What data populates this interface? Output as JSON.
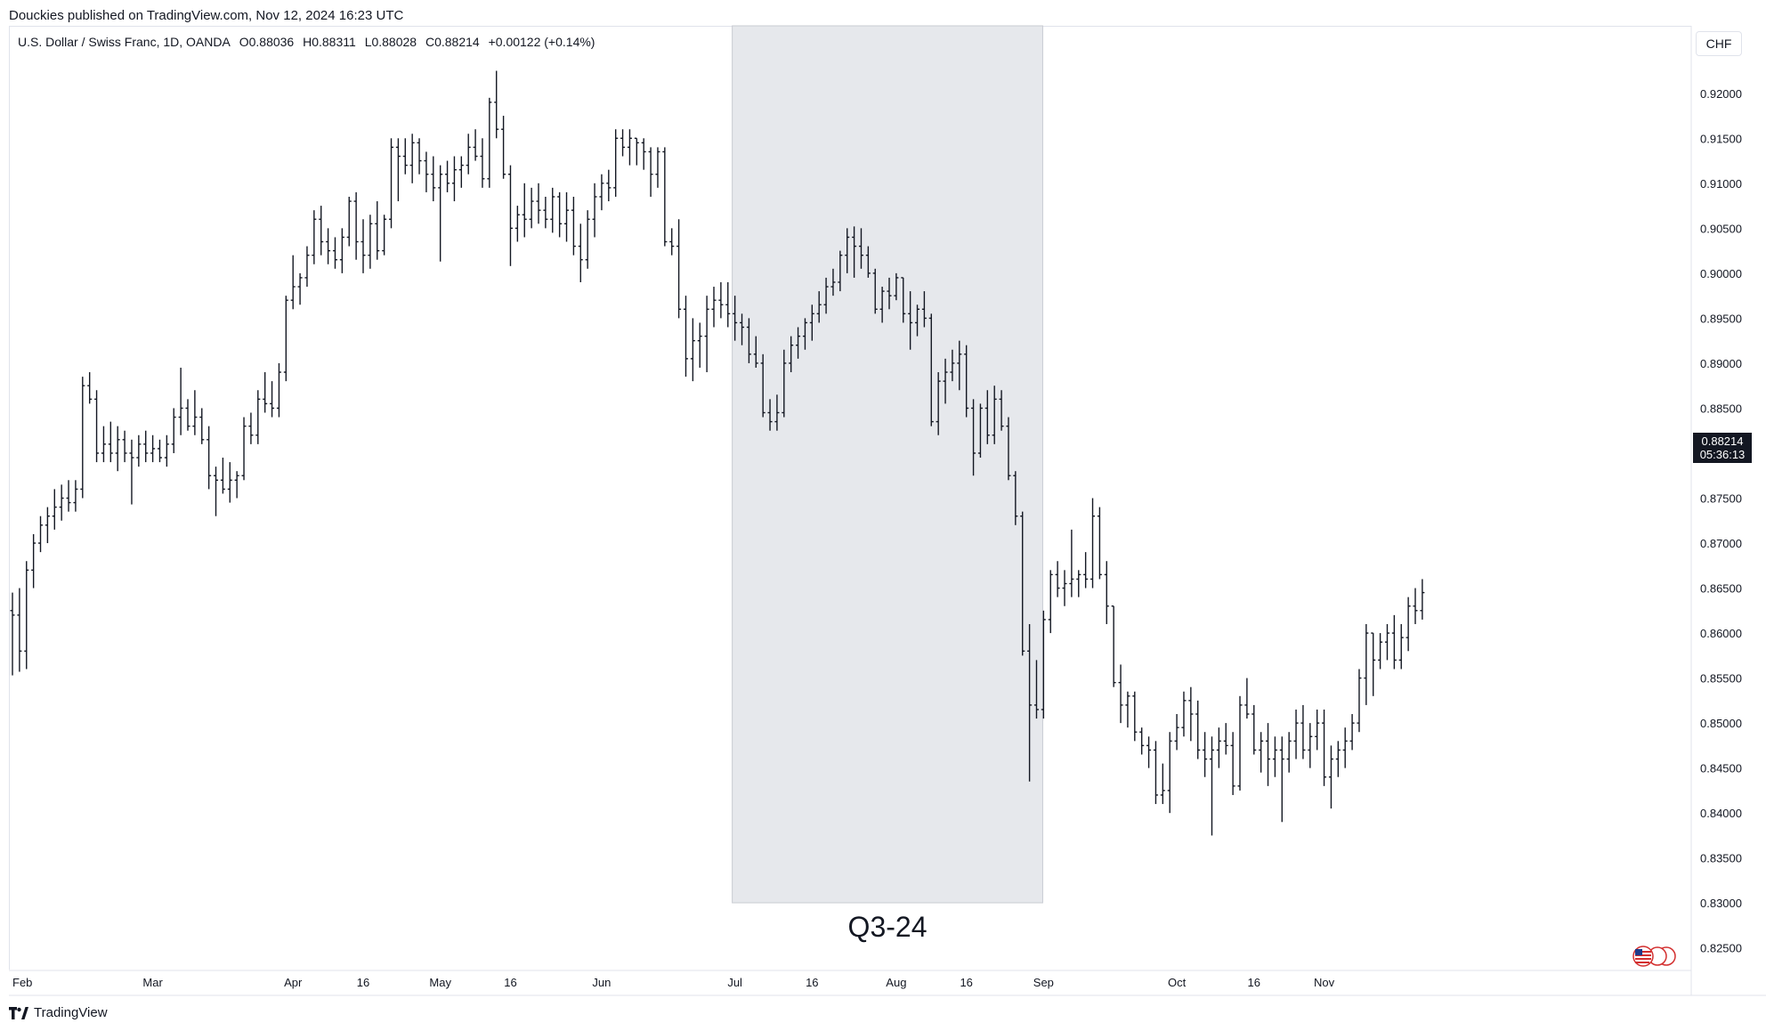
{
  "header": {
    "credit": "Douckies published on TradingView.com, Nov 12, 2024 16:23 UTC"
  },
  "legend": {
    "symbol": "U.S. Dollar / Swiss Franc, 1D, OANDA",
    "open": "O0.88036",
    "high": "H0.88311",
    "low": "L0.88028",
    "close": "C0.88214",
    "change": "+0.00122 (+0.14%)"
  },
  "price_axis": {
    "currency": "CHF",
    "last_price": "0.88214",
    "countdown": "05:36:13"
  },
  "footer": {
    "brand": "TradingView"
  },
  "colors": {
    "bars": "#131722",
    "highlight": "#e6e8ec",
    "highlight_border": "#c8cbd2"
  },
  "chart_data": {
    "type": "ohlc-bar",
    "symbol": "USDCHF",
    "ylim": [
      0.8225,
      0.9275
    ],
    "y_ticks": [
      "0.92000",
      "0.91500",
      "0.91000",
      "0.90500",
      "0.90000",
      "0.89500",
      "0.89000",
      "0.88500",
      "0.88000",
      "0.87500",
      "0.87000",
      "0.86500",
      "0.86000",
      "0.85500",
      "0.85000",
      "0.84500",
      "0.84000",
      "0.83500",
      "0.83000",
      "0.82500"
    ],
    "x_ticks": [
      {
        "label": "Feb",
        "bar": 0
      },
      {
        "label": "Mar",
        "bar": 20
      },
      {
        "label": "Apr",
        "bar": 40
      },
      {
        "label": "16",
        "bar": 50
      },
      {
        "label": "May",
        "bar": 61
      },
      {
        "label": "16",
        "bar": 71
      },
      {
        "label": "Jun",
        "bar": 84
      },
      {
        "label": "Jul",
        "bar": 103
      },
      {
        "label": "16",
        "bar": 114
      },
      {
        "label": "Aug",
        "bar": 126
      },
      {
        "label": "16",
        "bar": 136
      },
      {
        "label": "Sep",
        "bar": 147
      },
      {
        "label": "Oct",
        "bar": 166
      },
      {
        "label": "16",
        "bar": 177
      },
      {
        "label": "Nov",
        "bar": 187
      }
    ],
    "highlight": {
      "label": "Q3-24",
      "start_bar": 103,
      "end_bar": 146.5
    },
    "bars": [
      [
        0.8625,
        0.8645,
        0.8553,
        0.862
      ],
      [
        0.862,
        0.865,
        0.8557,
        0.858
      ],
      [
        0.858,
        0.868,
        0.856,
        0.867
      ],
      [
        0.867,
        0.871,
        0.865,
        0.87
      ],
      [
        0.87,
        0.873,
        0.869,
        0.872
      ],
      [
        0.872,
        0.874,
        0.87,
        0.873
      ],
      [
        0.873,
        0.876,
        0.8715,
        0.874
      ],
      [
        0.874,
        0.8765,
        0.8725,
        0.875
      ],
      [
        0.875,
        0.877,
        0.8735,
        0.8745
      ],
      [
        0.8745,
        0.877,
        0.8735,
        0.876
      ],
      [
        0.876,
        0.8885,
        0.875,
        0.8875
      ],
      [
        0.8875,
        0.889,
        0.8855,
        0.886
      ],
      [
        0.886,
        0.887,
        0.879,
        0.88
      ],
      [
        0.88,
        0.883,
        0.879,
        0.881
      ],
      [
        0.881,
        0.8835,
        0.879,
        0.88
      ],
      [
        0.88,
        0.883,
        0.878,
        0.8815
      ],
      [
        0.8815,
        0.8825,
        0.879,
        0.88
      ],
      [
        0.88,
        0.8815,
        0.8743,
        0.8795
      ],
      [
        0.8795,
        0.882,
        0.8785,
        0.881
      ],
      [
        0.881,
        0.8825,
        0.879,
        0.88
      ],
      [
        0.88,
        0.882,
        0.879,
        0.8805
      ],
      [
        0.8805,
        0.8815,
        0.879,
        0.8795
      ],
      [
        0.8795,
        0.882,
        0.8785,
        0.881
      ],
      [
        0.881,
        0.885,
        0.88,
        0.884
      ],
      [
        0.884,
        0.8895,
        0.882,
        0.885
      ],
      [
        0.885,
        0.886,
        0.8825,
        0.883
      ],
      [
        0.883,
        0.887,
        0.882,
        0.884
      ],
      [
        0.884,
        0.885,
        0.881,
        0.8815
      ],
      [
        0.8815,
        0.883,
        0.876,
        0.8775
      ],
      [
        0.8775,
        0.8785,
        0.873,
        0.877
      ],
      [
        0.877,
        0.8795,
        0.8755,
        0.876
      ],
      [
        0.876,
        0.879,
        0.8745,
        0.877
      ],
      [
        0.877,
        0.878,
        0.875,
        0.8775
      ],
      [
        0.8775,
        0.884,
        0.877,
        0.883
      ],
      [
        0.883,
        0.8845,
        0.881,
        0.882
      ],
      [
        0.882,
        0.887,
        0.881,
        0.886
      ],
      [
        0.886,
        0.889,
        0.8845,
        0.8855
      ],
      [
        0.8855,
        0.888,
        0.884,
        0.885
      ],
      [
        0.885,
        0.89,
        0.884,
        0.889
      ],
      [
        0.889,
        0.8975,
        0.888,
        0.897
      ],
      [
        0.897,
        0.902,
        0.896,
        0.8985
      ],
      [
        0.8985,
        0.9,
        0.8965,
        0.8995
      ],
      [
        0.8995,
        0.903,
        0.8985,
        0.902
      ],
      [
        0.902,
        0.907,
        0.901,
        0.906
      ],
      [
        0.906,
        0.9075,
        0.902,
        0.9035
      ],
      [
        0.9035,
        0.905,
        0.901,
        0.9025
      ],
      [
        0.9025,
        0.904,
        0.9005,
        0.9015
      ],
      [
        0.9015,
        0.905,
        0.9,
        0.904
      ],
      [
        0.904,
        0.9085,
        0.903,
        0.908
      ],
      [
        0.908,
        0.909,
        0.9015,
        0.9035
      ],
      [
        0.9035,
        0.906,
        0.9,
        0.902
      ],
      [
        0.902,
        0.9065,
        0.9005,
        0.9055
      ],
      [
        0.9055,
        0.908,
        0.9015,
        0.9025
      ],
      [
        0.9025,
        0.9065,
        0.902,
        0.906
      ],
      [
        0.906,
        0.915,
        0.905,
        0.914
      ],
      [
        0.914,
        0.915,
        0.908,
        0.913
      ],
      [
        0.913,
        0.915,
        0.911,
        0.912
      ],
      [
        0.912,
        0.9155,
        0.91,
        0.9145
      ],
      [
        0.9145,
        0.915,
        0.911,
        0.9125
      ],
      [
        0.9125,
        0.9135,
        0.909,
        0.911
      ],
      [
        0.911,
        0.913,
        0.908,
        0.9095
      ],
      [
        0.9095,
        0.912,
        0.9013,
        0.911
      ],
      [
        0.911,
        0.9125,
        0.909,
        0.91
      ],
      [
        0.91,
        0.913,
        0.908,
        0.9115
      ],
      [
        0.9115,
        0.913,
        0.9095,
        0.912
      ],
      [
        0.912,
        0.9155,
        0.911,
        0.914
      ],
      [
        0.914,
        0.916,
        0.9125,
        0.913
      ],
      [
        0.913,
        0.915,
        0.9095,
        0.9105
      ],
      [
        0.9105,
        0.9195,
        0.9095,
        0.919
      ],
      [
        0.919,
        0.9225,
        0.915,
        0.916
      ],
      [
        0.916,
        0.9175,
        0.9105,
        0.911
      ],
      [
        0.911,
        0.912,
        0.9008,
        0.905
      ],
      [
        0.905,
        0.9075,
        0.9035,
        0.9065
      ],
      [
        0.9065,
        0.91,
        0.904,
        0.906
      ],
      [
        0.906,
        0.9095,
        0.905,
        0.908
      ],
      [
        0.908,
        0.91,
        0.9055,
        0.907
      ],
      [
        0.907,
        0.9085,
        0.905,
        0.906
      ],
      [
        0.906,
        0.9095,
        0.9045,
        0.9085
      ],
      [
        0.9085,
        0.909,
        0.904,
        0.9055
      ],
      [
        0.9055,
        0.909,
        0.9035,
        0.907
      ],
      [
        0.907,
        0.9085,
        0.902,
        0.903
      ],
      [
        0.903,
        0.9055,
        0.899,
        0.9015
      ],
      [
        0.9015,
        0.907,
        0.9005,
        0.906
      ],
      [
        0.906,
        0.91,
        0.904,
        0.9085
      ],
      [
        0.9085,
        0.911,
        0.907,
        0.91
      ],
      [
        0.91,
        0.9115,
        0.908,
        0.9095
      ],
      [
        0.9095,
        0.916,
        0.9085,
        0.915
      ],
      [
        0.915,
        0.916,
        0.913,
        0.914
      ],
      [
        0.914,
        0.916,
        0.912,
        0.915
      ],
      [
        0.915,
        0.915,
        0.912,
        0.9145
      ],
      [
        0.9145,
        0.915,
        0.9115,
        0.9135
      ],
      [
        0.9135,
        0.914,
        0.9085,
        0.911
      ],
      [
        0.911,
        0.914,
        0.9095,
        0.9135
      ],
      [
        0.9135,
        0.914,
        0.903,
        0.9035
      ],
      [
        0.9035,
        0.905,
        0.902,
        0.903
      ],
      [
        0.903,
        0.906,
        0.895,
        0.896
      ],
      [
        0.896,
        0.8975,
        0.8885,
        0.8905
      ],
      [
        0.8905,
        0.895,
        0.888,
        0.8925
      ],
      [
        0.8925,
        0.8945,
        0.8895,
        0.893
      ],
      [
        0.893,
        0.8975,
        0.889,
        0.896
      ],
      [
        0.896,
        0.8985,
        0.894,
        0.897
      ],
      [
        0.897,
        0.899,
        0.895,
        0.8965
      ],
      [
        0.8965,
        0.899,
        0.894,
        0.8955
      ],
      [
        0.8955,
        0.8975,
        0.8925,
        0.8945
      ],
      [
        0.8945,
        0.8955,
        0.892,
        0.894
      ],
      [
        0.894,
        0.895,
        0.89,
        0.891
      ],
      [
        0.891,
        0.893,
        0.8895,
        0.89
      ],
      [
        0.89,
        0.891,
        0.884,
        0.8845
      ],
      [
        0.8845,
        0.886,
        0.8825,
        0.8835
      ],
      [
        0.8835,
        0.8865,
        0.8825,
        0.8845
      ],
      [
        0.8845,
        0.8915,
        0.884,
        0.89
      ],
      [
        0.89,
        0.893,
        0.889,
        0.892
      ],
      [
        0.892,
        0.894,
        0.8905,
        0.893
      ],
      [
        0.893,
        0.895,
        0.8915,
        0.8945
      ],
      [
        0.8945,
        0.8965,
        0.8925,
        0.8955
      ],
      [
        0.8955,
        0.898,
        0.8945,
        0.8965
      ],
      [
        0.8965,
        0.8995,
        0.8955,
        0.8985
      ],
      [
        0.8985,
        0.9005,
        0.8975,
        0.899
      ],
      [
        0.899,
        0.9025,
        0.898,
        0.902
      ],
      [
        0.902,
        0.905,
        0.9,
        0.904
      ],
      [
        0.904,
        0.9052,
        0.8995,
        0.903
      ],
      [
        0.903,
        0.905,
        0.9005,
        0.902
      ],
      [
        0.902,
        0.903,
        0.8995,
        0.9
      ],
      [
        0.9,
        0.9005,
        0.8955,
        0.896
      ],
      [
        0.896,
        0.8985,
        0.8945,
        0.898
      ],
      [
        0.898,
        0.8995,
        0.896,
        0.8975
      ],
      [
        0.8975,
        0.9,
        0.897,
        0.8995
      ],
      [
        0.8995,
        0.8995,
        0.8945,
        0.8955
      ],
      [
        0.8955,
        0.898,
        0.8915,
        0.8945
      ],
      [
        0.8945,
        0.8965,
        0.893,
        0.896
      ],
      [
        0.896,
        0.898,
        0.894,
        0.895
      ],
      [
        0.895,
        0.8955,
        0.883,
        0.8835
      ],
      [
        0.8835,
        0.889,
        0.882,
        0.888
      ],
      [
        0.888,
        0.8905,
        0.8855,
        0.889
      ],
      [
        0.889,
        0.8915,
        0.888,
        0.89
      ],
      [
        0.89,
        0.8925,
        0.887,
        0.891
      ],
      [
        0.891,
        0.892,
        0.884,
        0.885
      ],
      [
        0.885,
        0.886,
        0.8775,
        0.88
      ],
      [
        0.88,
        0.8855,
        0.8795,
        0.885
      ],
      [
        0.885,
        0.887,
        0.881,
        0.882
      ],
      [
        0.882,
        0.8875,
        0.881,
        0.886
      ],
      [
        0.886,
        0.887,
        0.8825,
        0.883
      ],
      [
        0.883,
        0.884,
        0.877,
        0.8775
      ],
      [
        0.8775,
        0.878,
        0.872,
        0.873
      ],
      [
        0.873,
        0.8735,
        0.8575,
        0.858
      ],
      [
        0.858,
        0.861,
        0.8435,
        0.852
      ],
      [
        0.852,
        0.857,
        0.8505,
        0.8515
      ],
      [
        0.8515,
        0.8625,
        0.8505,
        0.8615
      ],
      [
        0.8615,
        0.867,
        0.86,
        0.8665
      ],
      [
        0.8665,
        0.868,
        0.864,
        0.865
      ],
      [
        0.865,
        0.867,
        0.863,
        0.8655
      ],
      [
        0.8655,
        0.8715,
        0.864,
        0.866
      ],
      [
        0.866,
        0.867,
        0.864,
        0.8665
      ],
      [
        0.8665,
        0.869,
        0.865,
        0.866
      ],
      [
        0.866,
        0.875,
        0.865,
        0.873
      ],
      [
        0.873,
        0.874,
        0.866,
        0.8665
      ],
      [
        0.8665,
        0.868,
        0.861,
        0.863
      ],
      [
        0.863,
        0.863,
        0.854,
        0.8545
      ],
      [
        0.8545,
        0.8565,
        0.85,
        0.852
      ],
      [
        0.852,
        0.8535,
        0.8495,
        0.853
      ],
      [
        0.853,
        0.8535,
        0.848,
        0.849
      ],
      [
        0.849,
        0.8495,
        0.8465,
        0.8475
      ],
      [
        0.8475,
        0.8485,
        0.845,
        0.847
      ],
      [
        0.847,
        0.848,
        0.841,
        0.842
      ],
      [
        0.842,
        0.8455,
        0.841,
        0.8425
      ],
      [
        0.8425,
        0.849,
        0.84,
        0.848
      ],
      [
        0.848,
        0.851,
        0.847,
        0.8495
      ],
      [
        0.8495,
        0.8535,
        0.8485,
        0.8525
      ],
      [
        0.8525,
        0.854,
        0.848,
        0.851
      ],
      [
        0.851,
        0.8525,
        0.846,
        0.847
      ],
      [
        0.847,
        0.849,
        0.844,
        0.846
      ],
      [
        0.846,
        0.8485,
        0.8375,
        0.847
      ],
      [
        0.847,
        0.8495,
        0.845,
        0.848
      ],
      [
        0.848,
        0.85,
        0.8465,
        0.8475
      ],
      [
        0.8475,
        0.849,
        0.842,
        0.843
      ],
      [
        0.843,
        0.853,
        0.8425,
        0.852
      ],
      [
        0.852,
        0.855,
        0.8505,
        0.851
      ],
      [
        0.851,
        0.852,
        0.8465,
        0.847
      ],
      [
        0.847,
        0.849,
        0.8445,
        0.848
      ],
      [
        0.848,
        0.85,
        0.843,
        0.846
      ],
      [
        0.846,
        0.8485,
        0.844,
        0.847
      ],
      [
        0.847,
        0.8485,
        0.839,
        0.846
      ],
      [
        0.846,
        0.849,
        0.8445,
        0.848
      ],
      [
        0.848,
        0.8515,
        0.846,
        0.85
      ],
      [
        0.85,
        0.852,
        0.846,
        0.847
      ],
      [
        0.847,
        0.85,
        0.845,
        0.8485
      ],
      [
        0.8485,
        0.8515,
        0.847,
        0.85
      ],
      [
        0.85,
        0.8515,
        0.843,
        0.844
      ],
      [
        0.844,
        0.8475,
        0.8405,
        0.846
      ],
      [
        0.846,
        0.848,
        0.844,
        0.847
      ],
      [
        0.847,
        0.8495,
        0.845,
        0.848
      ],
      [
        0.848,
        0.851,
        0.847,
        0.85
      ],
      [
        0.85,
        0.856,
        0.849,
        0.855
      ],
      [
        0.855,
        0.861,
        0.852,
        0.86
      ],
      [
        0.86,
        0.86,
        0.853,
        0.857
      ],
      [
        0.857,
        0.86,
        0.856,
        0.859
      ],
      [
        0.859,
        0.861,
        0.857,
        0.86
      ],
      [
        0.86,
        0.862,
        0.856,
        0.857
      ],
      [
        0.857,
        0.861,
        0.856,
        0.8595
      ],
      [
        0.8595,
        0.864,
        0.858,
        0.863
      ],
      [
        0.863,
        0.865,
        0.861,
        0.8625
      ],
      [
        0.8625,
        0.866,
        0.8615,
        0.8645
      ]
    ]
  }
}
